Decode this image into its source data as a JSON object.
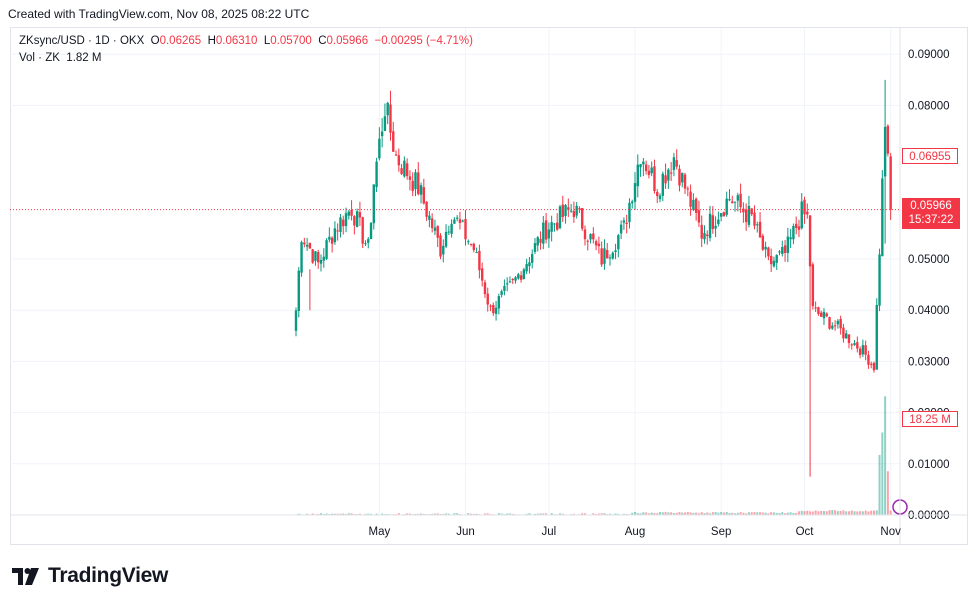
{
  "header": {
    "created": "Created with TradingView.com, Nov 08, 2025 08:22 UTC"
  },
  "legend": {
    "symbol": "ZKsync/USD · 1D · OKX",
    "open_label": "O",
    "open": "0.06265",
    "high_label": "H",
    "high": "0.06310",
    "low_label": "L",
    "low": "0.05700",
    "close_label": "C",
    "close": "0.05966",
    "change": "−0.00295 (−4.71%)",
    "vol_label": "Vol · ZK",
    "vol_value": "1.82 M"
  },
  "badges": {
    "last_price": "0.05966",
    "countdown": "15:37:22",
    "prev_level": "0.06955",
    "volume": "18.25 M"
  },
  "brand": {
    "name": "TradingView"
  },
  "colors": {
    "up": "#089981",
    "down": "#f23645",
    "grid": "#f0f3fa",
    "text": "#131722"
  },
  "chart_data": {
    "type": "candlestick",
    "title": "ZKsync/USD · 1D · OKX",
    "y_ticks": [
      "0.09000",
      "0.08000",
      "0.05000",
      "0.04000",
      "0.03000",
      "0.02000",
      "0.01000",
      "0.00000"
    ],
    "y_tick_values": [
      0.09,
      0.08,
      0.05,
      0.04,
      0.03,
      0.02,
      0.01,
      0.0
    ],
    "ylim": [
      0.0,
      0.092
    ],
    "x_labels": [
      "May",
      "Jun",
      "Jul",
      "Aug",
      "Sep",
      "Oct",
      "Nov"
    ],
    "x_label_days": [
      30,
      61,
      91,
      122,
      153,
      183,
      214
    ],
    "grid": true,
    "last_price_line": 0.05966,
    "key_points": [
      {
        "day": 0,
        "price": 0.04
      },
      {
        "day": 2,
        "price": 0.055
      },
      {
        "day": 8,
        "price": 0.049
      },
      {
        "day": 14,
        "price": 0.056
      },
      {
        "day": 20,
        "price": 0.06
      },
      {
        "day": 26,
        "price": 0.052
      },
      {
        "day": 28,
        "price": 0.065
      },
      {
        "day": 32,
        "price": 0.08
      },
      {
        "day": 36,
        "price": 0.07
      },
      {
        "day": 44,
        "price": 0.064
      },
      {
        "day": 52,
        "price": 0.052
      },
      {
        "day": 56,
        "price": 0.059
      },
      {
        "day": 64,
        "price": 0.052
      },
      {
        "day": 70,
        "price": 0.04
      },
      {
        "day": 78,
        "price": 0.045
      },
      {
        "day": 90,
        "price": 0.056
      },
      {
        "day": 100,
        "price": 0.06
      },
      {
        "day": 110,
        "price": 0.05
      },
      {
        "day": 118,
        "price": 0.056
      },
      {
        "day": 124,
        "price": 0.071
      },
      {
        "day": 130,
        "price": 0.064
      },
      {
        "day": 136,
        "price": 0.07
      },
      {
        "day": 146,
        "price": 0.055
      },
      {
        "day": 156,
        "price": 0.062
      },
      {
        "day": 164,
        "price": 0.058
      },
      {
        "day": 170,
        "price": 0.049
      },
      {
        "day": 176,
        "price": 0.051
      },
      {
        "day": 182,
        "price": 0.059
      },
      {
        "day": 184,
        "price": 0.058
      },
      {
        "day": 186,
        "price": 0.04
      },
      {
        "day": 194,
        "price": 0.037
      },
      {
        "day": 204,
        "price": 0.032
      },
      {
        "day": 208,
        "price": 0.029
      },
      {
        "day": 210,
        "price": 0.052
      },
      {
        "day": 212,
        "price": 0.077
      },
      {
        "day": 214,
        "price": 0.0597
      }
    ],
    "special_wicks": [
      {
        "day": 5,
        "low": 0.04,
        "high": 0.048
      },
      {
        "day": 185,
        "low": 0.0075,
        "high": 0.058
      },
      {
        "day": 212,
        "low": 0.053,
        "high": 0.085
      }
    ],
    "volume_spikes": [
      {
        "day": 210,
        "value": 0.48
      },
      {
        "day": 211,
        "value": 0.66
      },
      {
        "day": 212,
        "value": 0.95
      },
      {
        "day": 213,
        "value": 0.35
      }
    ]
  }
}
